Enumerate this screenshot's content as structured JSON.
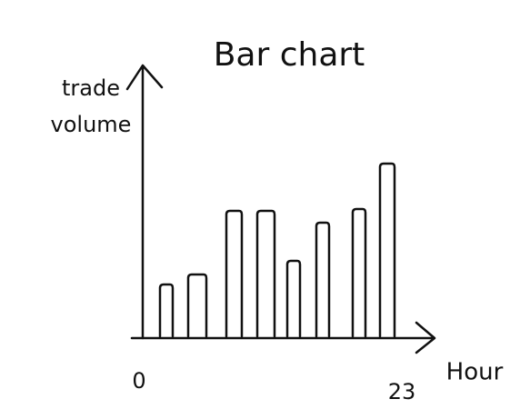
{
  "chart_data": {
    "type": "bar",
    "title": "Bar chart",
    "y_label": "trade volume",
    "x_label": "Hour",
    "categories": [
      null,
      null,
      null,
      null,
      null,
      null,
      null,
      null
    ],
    "values": [
      57,
      68,
      138,
      138,
      83,
      125,
      140,
      190
    ],
    "color": "#111111",
    "xticks": [
      0,
      23
    ],
    "ylim": [
      0,
      300
    ]
  }
}
